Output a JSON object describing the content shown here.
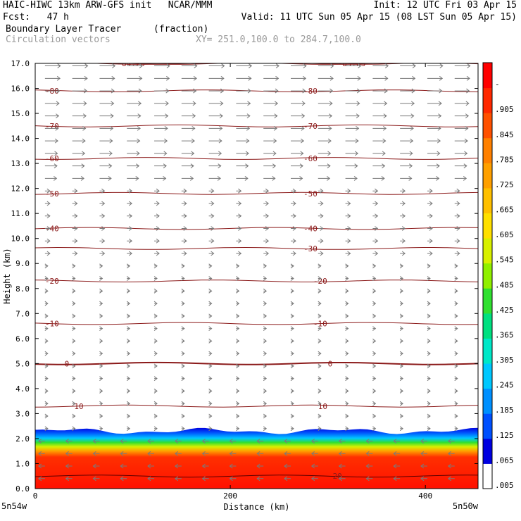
{
  "header": {
    "line1_left": "HAIC-HIWC 13km ARW-GFS init   NCAR/MMM",
    "line1_right": "Init: 12 UTC Fri 03 Apr 15",
    "line2_left": "Fcst:   47 h",
    "line2_right": "Valid: 11 UTC Sun 05 Apr 15 (08 LST Sun 05 Apr 15)",
    "line3_field": "Boundary Layer Tracer",
    "line3_units": "(fraction)",
    "line4_field": "Circulation vectors",
    "line4_xy": "XY= 251.0,100.0 to 284.7,100.0"
  },
  "chart_data": {
    "type": "heatmap",
    "xlabel": "Distance (km)",
    "ylabel": "Height (km)",
    "xlim": [
      0,
      454
    ],
    "ylim": [
      0,
      17
    ],
    "x_ticks": [
      0,
      200,
      400
    ],
    "x_tick_labels": [
      "0",
      "200",
      "400"
    ],
    "y_ticks": [
      0,
      1,
      2,
      3,
      4,
      5,
      6,
      7,
      8,
      9,
      10,
      11,
      12,
      13,
      14,
      15,
      16,
      17
    ],
    "y_tick_labels": [
      "0.0",
      "1.0",
      "2.0",
      "3.0",
      "4.0",
      "5.0",
      "6.0",
      "7.0",
      "8.0",
      "9.0",
      "10.0",
      "11.0",
      "12.0",
      "13.0",
      "14.0",
      "15.0",
      "16.0",
      "17.0"
    ],
    "x_endpoints": [
      "5n54w",
      "5n50w"
    ],
    "colorbar": {
      "labels": [
        ".005",
        ".065",
        ".125",
        ".185",
        ".245",
        ".305",
        ".365",
        ".425",
        ".485",
        ".545",
        ".605",
        ".665",
        ".725",
        ".785",
        ".845",
        ".905",
        "-"
      ],
      "colors": [
        "#ffffff",
        "#0000e0",
        "#0050ff",
        "#0090ff",
        "#00c8ff",
        "#00e8c8",
        "#00e080",
        "#30e030",
        "#90f000",
        "#d8f000",
        "#ffe000",
        "#ffc000",
        "#ffa000",
        "#ff8000",
        "#ff5000",
        "#ff2800",
        "#ff0000"
      ]
    },
    "tracer_layer": {
      "top_km": 2.3,
      "core_value": 0.98
    },
    "temperature_contours_C": [
      {
        "value": "-84.29",
        "height_km": 17.0
      },
      {
        "value": "-85.63",
        "height_km": 17.0
      },
      {
        "value": "-80",
        "height_km": 15.9
      },
      {
        "value": "-70",
        "height_km": 14.5
      },
      {
        "value": "-60",
        "height_km": 13.2
      },
      {
        "value": "-50",
        "height_km": 11.8
      },
      {
        "value": "-40",
        "height_km": 10.4
      },
      {
        "value": "-30",
        "height_km": 9.6
      },
      {
        "value": "-20",
        "height_km": 8.3
      },
      {
        "value": "-10",
        "height_km": 6.6
      },
      {
        "value": "0",
        "height_km": 5.0
      },
      {
        "value": "10",
        "height_km": 3.3
      },
      {
        "value": "20",
        "height_km": 0.5
      }
    ],
    "contour_label_positions_km": {
      "-84.29": 84,
      "-85.63": 310,
      "-80": 10,
      "-80b": 275,
      "-70": 10,
      "-70b": 275,
      "-60": 10,
      "-60b": 275,
      "-50": 10,
      "-50b": 275,
      "-40": 10,
      "-40b": 275,
      "-30b": 275,
      "-20": 10,
      "-20b": 285,
      "-10": 10,
      "-10b": 285,
      "0": 30,
      "0b": 300,
      "10": 40,
      "10b": 290,
      "20b": 305
    }
  }
}
